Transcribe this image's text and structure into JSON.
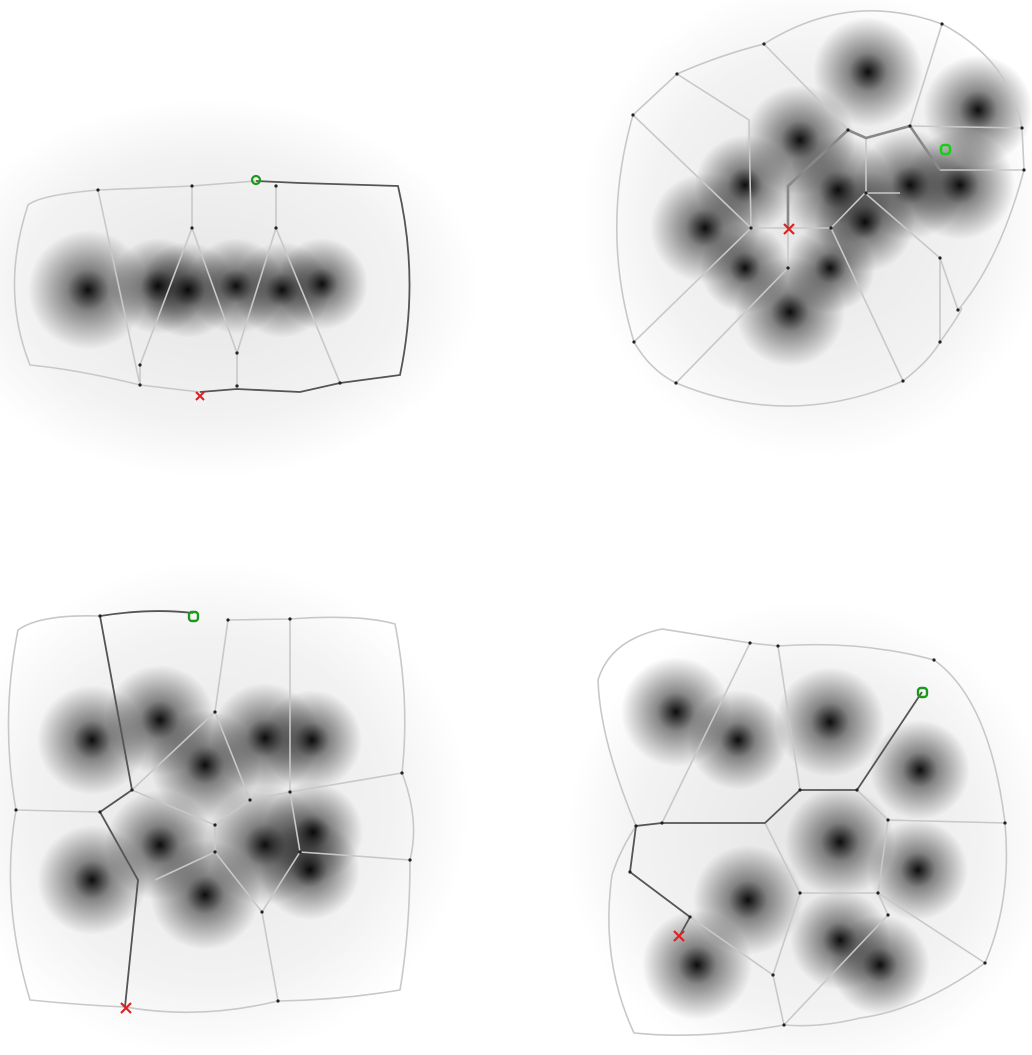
{
  "colors": {
    "background": "#ffffff",
    "edge_light": "#c8c8c8",
    "edge_mid": "#a8a8a8",
    "edge_path": "#555555",
    "vertex": "#222222",
    "start_marker": "#1a9a1a",
    "end_marker": "#e02020"
  },
  "icons": {
    "start": "green-circle-icon",
    "end": "red-x-icon"
  }
}
